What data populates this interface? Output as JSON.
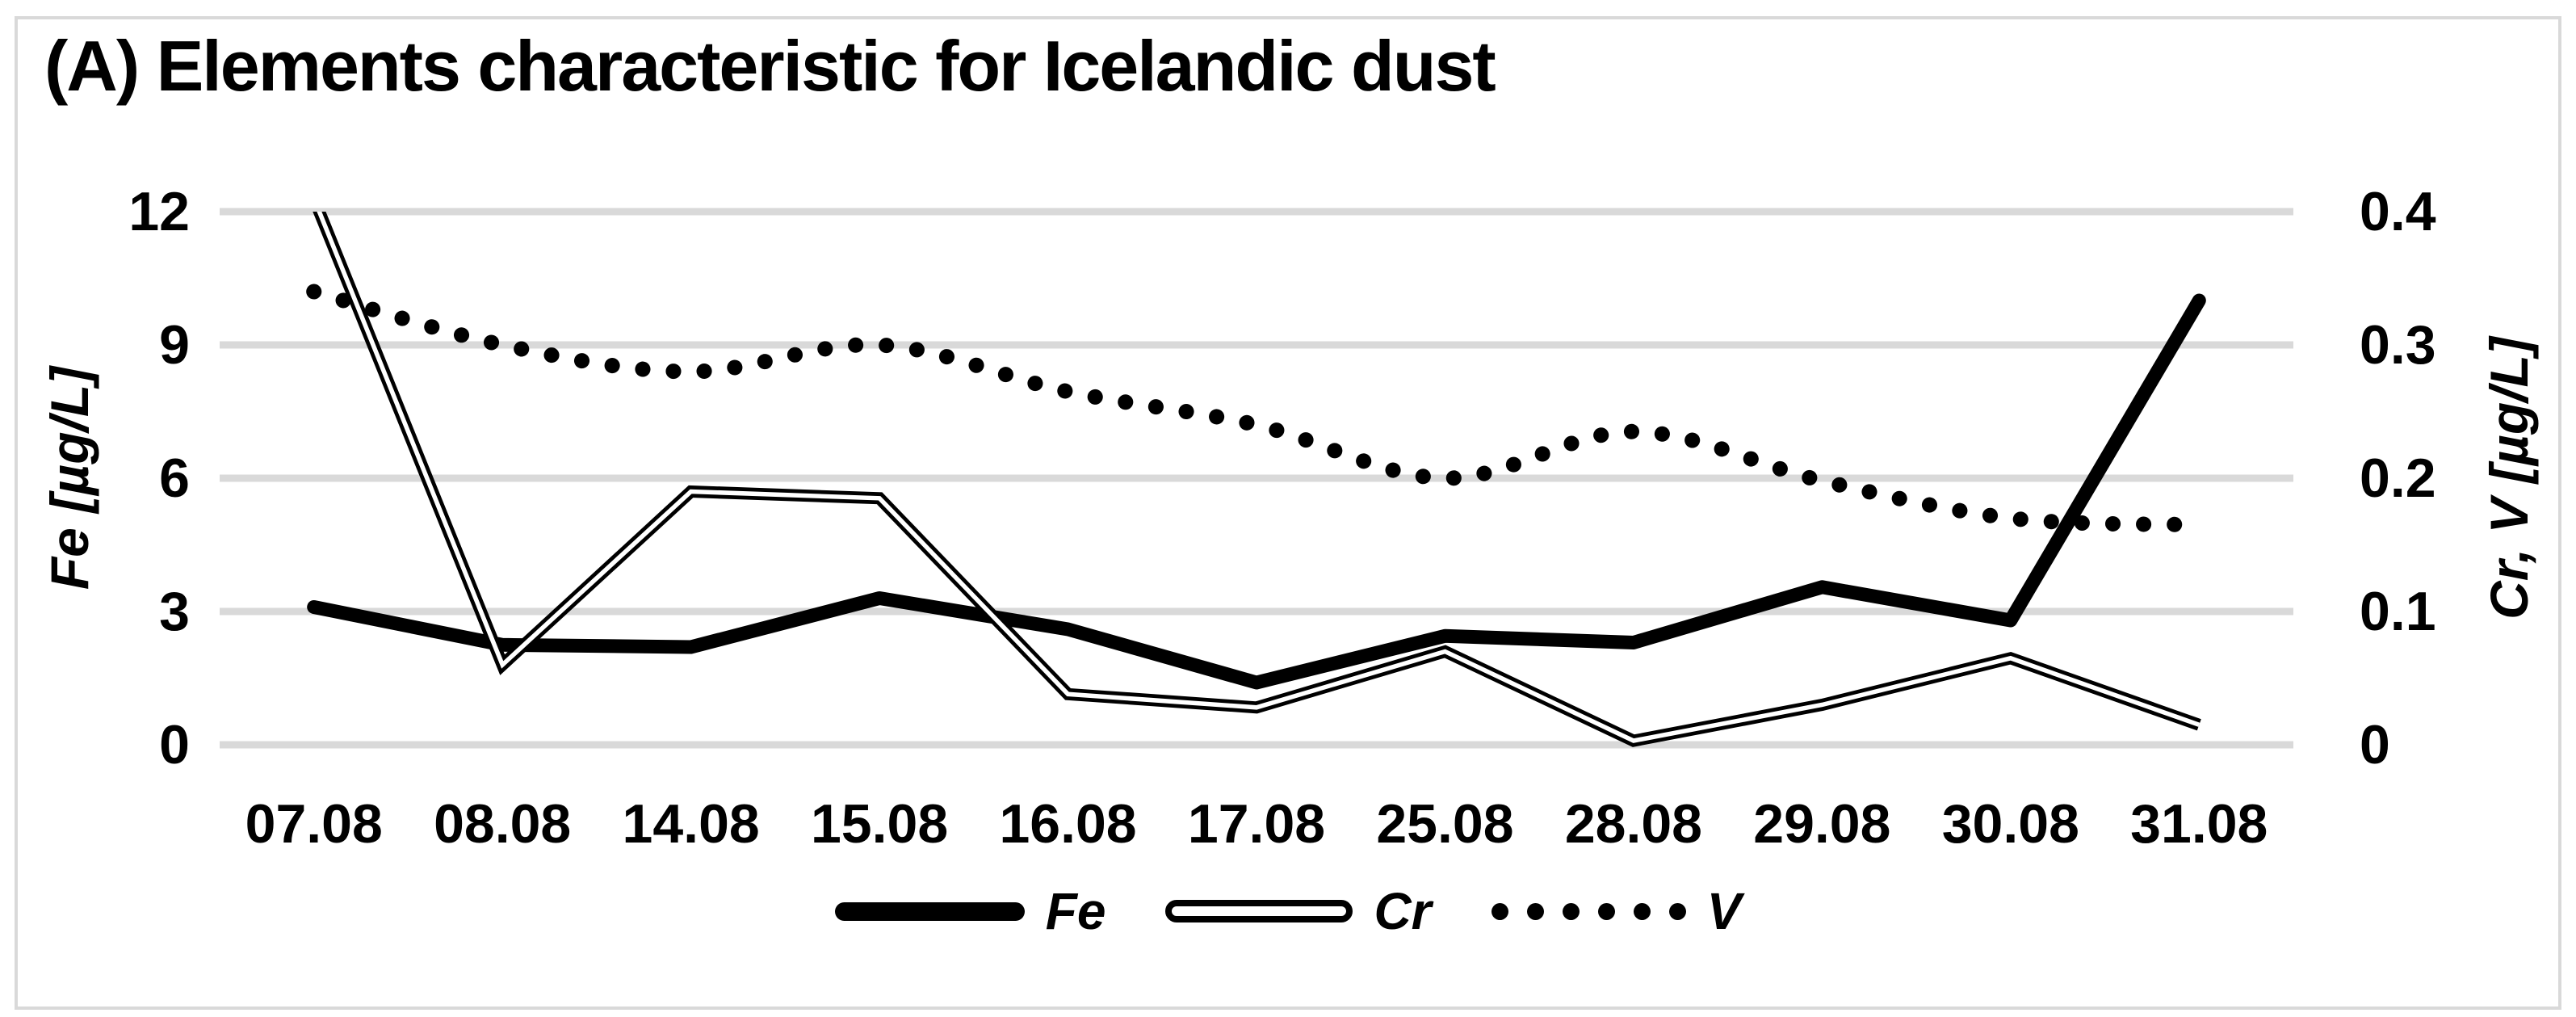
{
  "title": "(A) Elements characteristic for Icelandic dust",
  "colors": {
    "series": "#000000",
    "grid": "#d9d9d9",
    "chart_border": "#d9d9d9",
    "background": "#ffffff",
    "text": "#000000"
  },
  "chart_data": {
    "type": "line",
    "categories": [
      "07.08",
      "08.08",
      "14.08",
      "15.08",
      "16.08",
      "17.08",
      "25.08",
      "28.08",
      "29.08",
      "30.08",
      "31.08"
    ],
    "series": [
      {
        "name": "Fe",
        "axis": "left",
        "style": "thick-solid",
        "values": [
          3.1,
          2.25,
          2.2,
          3.3,
          2.6,
          1.4,
          2.45,
          2.3,
          3.55,
          2.8,
          10.0
        ]
      },
      {
        "name": "Cr",
        "axis": "right",
        "style": "double-line",
        "values": [
          0.41,
          0.06,
          0.19,
          0.185,
          0.038,
          0.028,
          0.07,
          0.003,
          0.03,
          0.065,
          0.015
        ],
        "note": "07.08 point exceeds right-axis maximum; line is clipped at the 0.4 gridline"
      },
      {
        "name": "V",
        "axis": "right",
        "style": "dotted-smooth",
        "values": [
          0.34,
          0.3,
          0.28,
          0.3,
          0.265,
          0.24,
          0.2,
          0.235,
          0.198,
          0.17,
          0.165
        ]
      }
    ],
    "left_axis": {
      "title": "Fe [µg/L]",
      "ticks": [
        "12",
        "9",
        "6",
        "3",
        "0"
      ],
      "range": [
        0,
        12
      ]
    },
    "right_axis": {
      "title": "Cr, V [µg/L]",
      "ticks": [
        "0.4",
        "0.3",
        "0.2",
        "0.1",
        "0"
      ],
      "range": [
        0,
        0.4
      ]
    },
    "x_axis": {
      "labels": [
        "07.08",
        "08.08",
        "14.08",
        "15.08",
        "16.08",
        "17.08",
        "25.08",
        "28.08",
        "29.08",
        "30.08",
        "31.08"
      ]
    },
    "legend": [
      {
        "label": "Fe",
        "style": "thick-solid"
      },
      {
        "label": "Cr",
        "style": "double-line"
      },
      {
        "label": "V",
        "style": "dotted-smooth"
      }
    ],
    "grid": true,
    "legend_position": "bottom"
  }
}
